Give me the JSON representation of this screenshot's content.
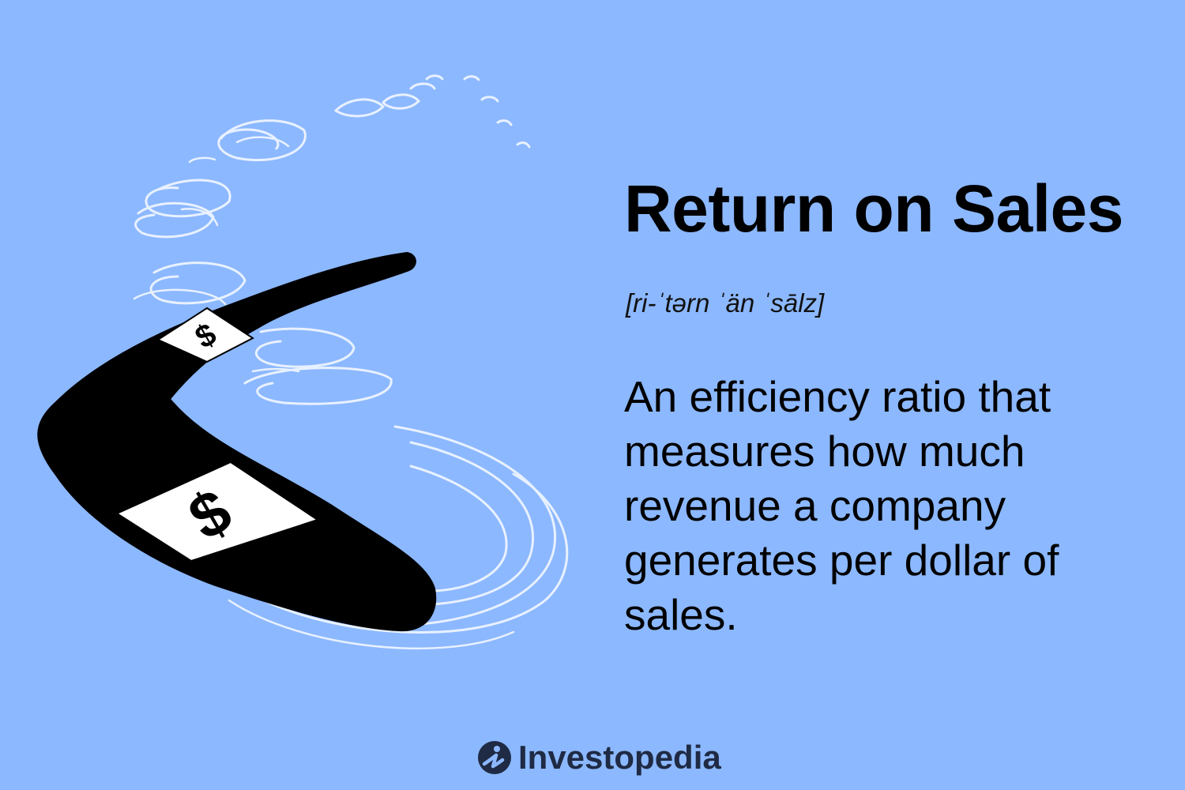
{
  "heading": {
    "title": "Return on Sales",
    "pronunciation": "[ri-ˈtərn ˈän ˈsālz]"
  },
  "definition": {
    "text": "An efficiency ratio that measures how much revenue a company generates per dollar of sales."
  },
  "illustration": {
    "subject": "boomerang-with-dollar-signs",
    "band_symbol": "$",
    "colors": {
      "background": "#8cb8ff",
      "boomerang": "#000000",
      "band": "#ffffff",
      "motion_lines": "#e8f1ff"
    }
  },
  "brand": {
    "name": "Investopedia",
    "icon": "investopedia-logo-icon",
    "color": "#1f2a44"
  }
}
